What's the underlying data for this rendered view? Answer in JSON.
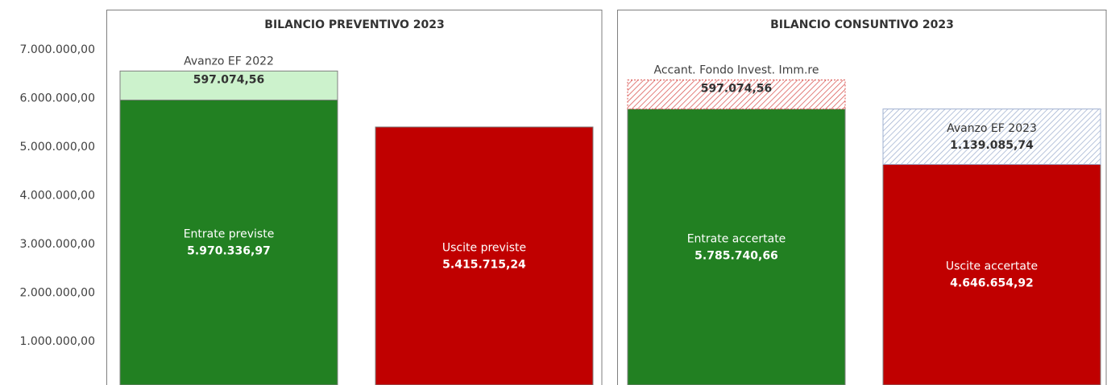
{
  "chart_data": [
    {
      "type": "stacked_bar",
      "title": "BILANCIO PREVENTIVO 2023",
      "ylim": [
        107000,
        7830000
      ],
      "yticks": [
        {
          "value": 1000000,
          "label": "1.000.000,00"
        },
        {
          "value": 2000000,
          "label": "2.000.000,00"
        },
        {
          "value": 3000000,
          "label": "3.000.000,00"
        },
        {
          "value": 4000000,
          "label": "4.000.000,00"
        },
        {
          "value": 5000000,
          "label": "5.000.000,00"
        },
        {
          "value": 6000000,
          "label": "6.000.000,00"
        },
        {
          "value": 7000000,
          "label": "7.000.000,00"
        }
      ],
      "bars": [
        {
          "segments": [
            {
              "name": "Entrate previste",
              "value": 5970336.97,
              "value_label": "5.970.336,97",
              "color": "#228022"
            },
            {
              "name": "Avanzo EF 2022",
              "value": 597074.56,
              "value_label": "597.074,56",
              "color": "#ccf2cc"
            }
          ]
        },
        {
          "segments": [
            {
              "name": "Uscite previste",
              "value": 5415715.24,
              "value_label": "5.415.715,24",
              "color": "#c00000"
            }
          ]
        }
      ]
    },
    {
      "type": "stacked_bar",
      "title": "BILANCIO CONSUNTIVO 2023",
      "ylim": [
        107000,
        7830000
      ],
      "bars": [
        {
          "segments": [
            {
              "name": "Entrate accertate",
              "value": 5785740.66,
              "value_label": "5.785.740,66",
              "color": "#228022"
            },
            {
              "name": "Accant. Fondo Invest. Imm.re",
              "value": 597074.56,
              "value_label": "597.074,56",
              "color": "#d9534f",
              "pattern": "hatch"
            }
          ]
        },
        {
          "segments": [
            {
              "name": "Uscite accertate",
              "value": 4646654.92,
              "value_label": "4.646.654,92",
              "color": "#c00000"
            },
            {
              "name": "Avanzo EF 2023",
              "value": 1139085.74,
              "value_label": "1.139.085,74",
              "color": "#9fb0d0",
              "pattern": "hatch"
            }
          ]
        }
      ]
    }
  ]
}
